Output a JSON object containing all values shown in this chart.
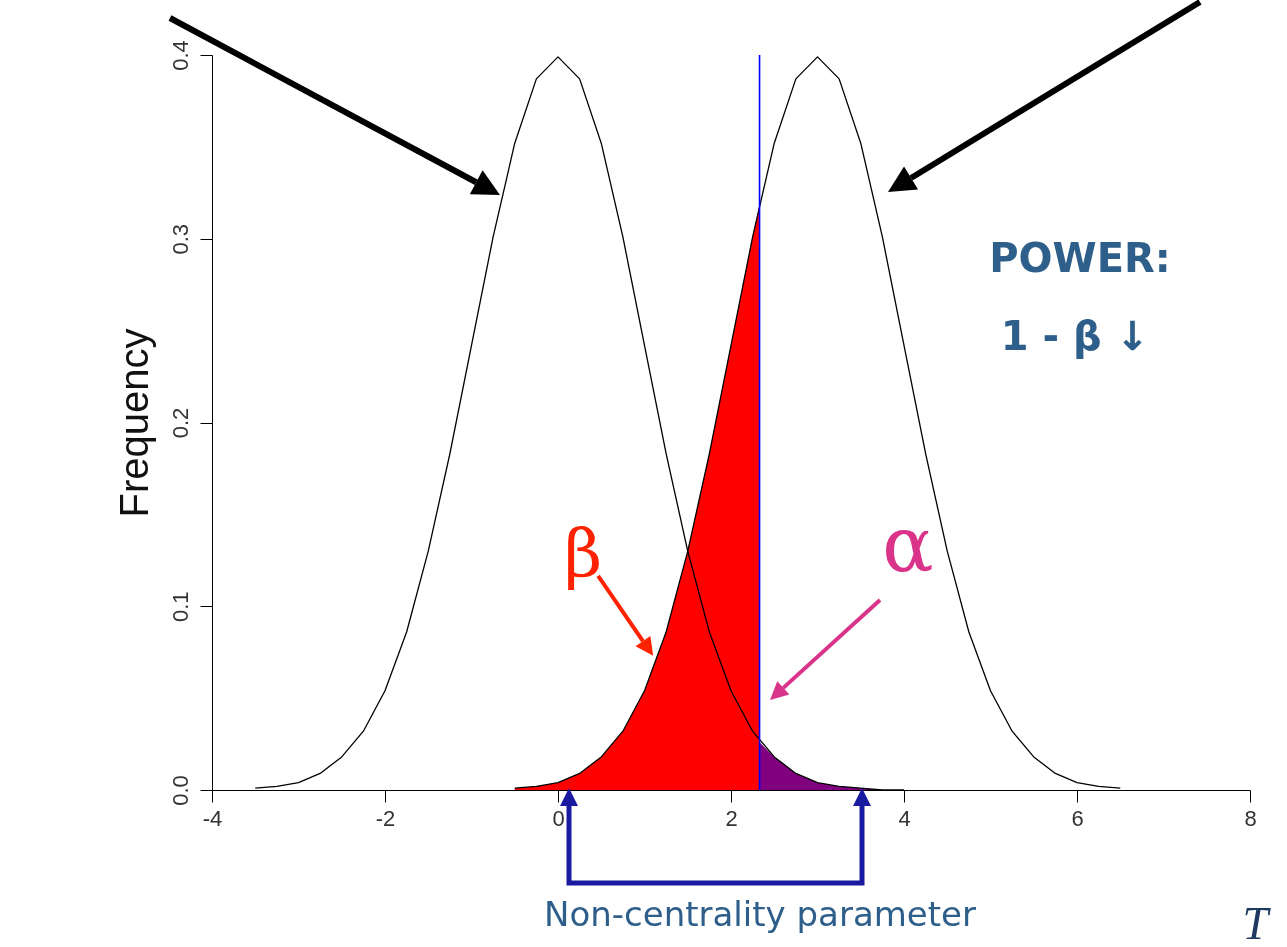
{
  "chart_data": {
    "type": "line",
    "xlabel": "T",
    "ylabel": "Frequency",
    "xlim": [
      -4,
      8
    ],
    "ylim": [
      0,
      0.4
    ],
    "xticks": [
      -4,
      -2,
      0,
      2,
      4,
      6,
      8
    ],
    "yticks": [
      {
        "value": 0,
        "label": "0.0"
      },
      0.1,
      0.2,
      0.3,
      0.4
    ],
    "grid": false,
    "series": [
      {
        "type": "area",
        "color": "#ff0000",
        "x": [
          -0.5,
          -0.25,
          0,
          0.25,
          0.5,
          0.75,
          1,
          1.25,
          1.5,
          1.75,
          2,
          2.25,
          2.33
        ],
        "values": [
          0.001,
          0.002,
          0.004,
          0.009,
          0.018,
          0.032,
          0.054,
          0.086,
          0.13,
          0.183,
          0.242,
          0.301,
          0.319
        ]
      },
      {
        "type": "area",
        "color": "#800080",
        "x": [
          2.33,
          2.5,
          2.75,
          3,
          3.25,
          3.5,
          3.75,
          4
        ],
        "values": [
          0.026,
          0.018,
          0.009,
          0.004,
          0.002,
          0.001,
          0.0,
          0.0
        ]
      },
      {
        "color": "#000000",
        "x": [
          -3.5,
          -3.25,
          -3,
          -2.75,
          -2.5,
          -2.25,
          -2,
          -1.75,
          -1.5,
          -1.25,
          -1,
          -0.75,
          -0.5,
          -0.25,
          0,
          0.25,
          0.5,
          0.75,
          1,
          1.25,
          1.5,
          1.75,
          2,
          2.25,
          2.5,
          2.75,
          3,
          3.25,
          3.5,
          3.75,
          4
        ],
        "values": [
          0.001,
          0.002,
          0.004,
          0.009,
          0.018,
          0.032,
          0.054,
          0.086,
          0.13,
          0.183,
          0.242,
          0.301,
          0.352,
          0.387,
          0.399,
          0.387,
          0.352,
          0.301,
          0.242,
          0.183,
          0.13,
          0.086,
          0.054,
          0.032,
          0.018,
          0.009,
          0.004,
          0.002,
          0.001,
          0.0,
          0.0
        ]
      },
      {
        "color": "#000000",
        "x": [
          -0.5,
          -0.25,
          0,
          0.25,
          0.5,
          0.75,
          1,
          1.25,
          1.5,
          1.75,
          2,
          2.25,
          2.5,
          2.75,
          3,
          3.25,
          3.5,
          3.75,
          4,
          4.25,
          4.5,
          4.75,
          5,
          5.25,
          5.5,
          5.75,
          6,
          6.25,
          6.5
        ],
        "values": [
          0.001,
          0.002,
          0.004,
          0.009,
          0.018,
          0.032,
          0.054,
          0.086,
          0.13,
          0.183,
          0.242,
          0.301,
          0.352,
          0.387,
          0.399,
          0.387,
          0.352,
          0.301,
          0.242,
          0.183,
          0.13,
          0.086,
          0.054,
          0.032,
          0.018,
          0.009,
          0.004,
          0.002,
          0.001
        ]
      }
    ],
    "ref_lines": [
      {
        "axis": "x",
        "value": 2.33,
        "color": "#0000ff"
      }
    ],
    "annotations": [
      {
        "text": "β",
        "x": 1.1,
        "y": 0.073
      },
      "α",
      "POWER:",
      "1 - β ↓",
      "Non-centrality parameter"
    ]
  }
}
